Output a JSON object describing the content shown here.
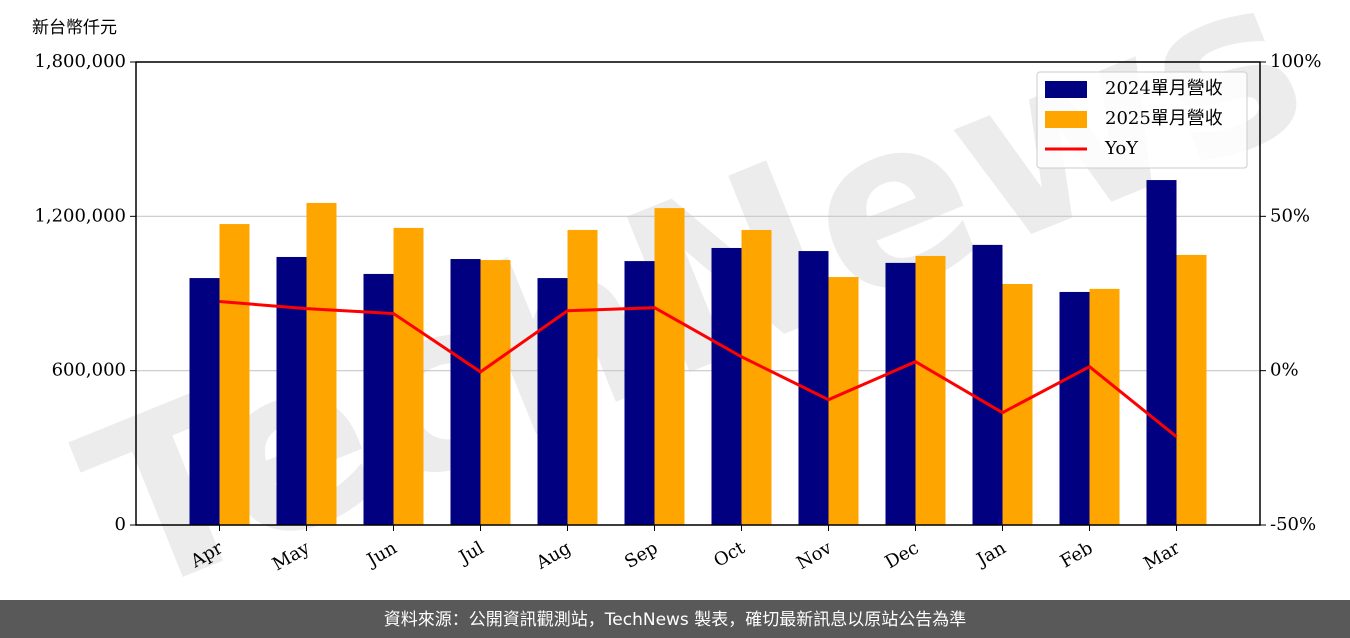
{
  "chart_data": {
    "type": "bar-line",
    "ylabel": "新台幣仟元",
    "watermark": "TechNews",
    "footer": "資料來源：公開資訊觀測站，TechNews 製表，確切最新訊息以原站公告為準",
    "categories": [
      "Apr",
      "May",
      "Jun",
      "Jul",
      "Aug",
      "Sep",
      "Oct",
      "Nov",
      "Dec",
      "Jan",
      "Feb",
      "Mar"
    ],
    "series": [
      {
        "name": "2024單月營收",
        "color": "#000080",
        "kind": "bar",
        "values": [
          960000,
          1042000,
          976000,
          1034000,
          960000,
          1026000,
          1077000,
          1065000,
          1019000,
          1089000,
          906000,
          1341000
        ]
      },
      {
        "name": "2025單月營收",
        "color": "#ffa500",
        "kind": "bar",
        "values": [
          1170000,
          1252000,
          1155000,
          1030000,
          1147000,
          1232000,
          1147000,
          964000,
          1046000,
          937000,
          918000,
          1050000
        ]
      },
      {
        "name": "YoY",
        "color": "#ff0000",
        "kind": "line",
        "axis": "y2",
        "values": [
          22.4,
          20.1,
          18.5,
          -0.4,
          19.4,
          20.4,
          4.5,
          -9.4,
          2.9,
          -13.6,
          1.3,
          -21.4
        ]
      }
    ],
    "ylim": [
      0,
      1800000
    ],
    "yticks": [
      {
        "value": 0,
        "label": "0"
      },
      {
        "value": 600000,
        "label": "600,000"
      },
      {
        "value": 1200000,
        "label": "1,200,000"
      },
      {
        "value": 1800000,
        "label": "1,800,000"
      }
    ],
    "y2lim": [
      -50,
      100
    ],
    "y2ticks": [
      {
        "value": -50,
        "label": "-50%"
      },
      {
        "value": 0,
        "label": "0%"
      },
      {
        "value": 50,
        "label": "50%"
      },
      {
        "value": 100,
        "label": "100%"
      }
    ],
    "grid": true,
    "legend": "upper right"
  }
}
